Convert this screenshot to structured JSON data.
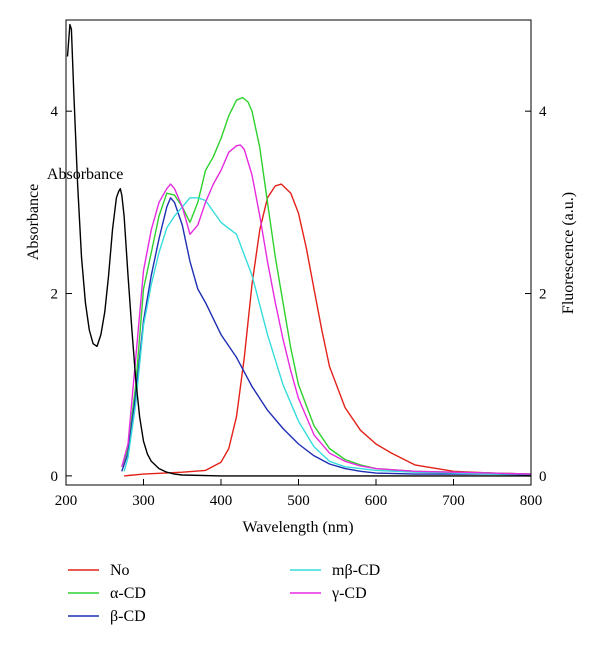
{
  "chart_data": {
    "type": "line",
    "title": "",
    "xlabel": "Wavelength (nm)",
    "ylabel_left": "Absorbance",
    "ylabel_right": "Fluorescence (a.u.)",
    "xlim": [
      200,
      800
    ],
    "ylim_left": [
      -0.1,
      5.0
    ],
    "ylim_right": [
      -0.1,
      5.0
    ],
    "xticks": [
      "200",
      "300",
      "400",
      "500",
      "600",
      "700",
      "800"
    ],
    "yticks_left": [
      "0",
      "2",
      "4"
    ],
    "yticks_right": [
      "0",
      "2",
      "4"
    ],
    "grid": false,
    "legend_position": "bottom",
    "annotation": {
      "text": "Absorbance",
      "x": 227,
      "y": 3.3
    },
    "series": [
      {
        "name": "No",
        "axis": "right",
        "color": "#e32119",
        "x": [
          275,
          300,
          350,
          380,
          400,
          410,
          420,
          430,
          440,
          450,
          460,
          470,
          478,
          490,
          500,
          510,
          520,
          530,
          540,
          560,
          580,
          600,
          620,
          650,
          700,
          750,
          800
        ],
        "y": [
          0.0,
          0.02,
          0.04,
          0.06,
          0.15,
          0.3,
          0.65,
          1.3,
          2.1,
          2.7,
          3.05,
          3.18,
          3.2,
          3.1,
          2.88,
          2.5,
          2.05,
          1.6,
          1.2,
          0.75,
          0.5,
          0.35,
          0.25,
          0.12,
          0.05,
          0.03,
          0.02
        ]
      },
      {
        "name": "α-CD",
        "axis": "right",
        "color": "#2ed12e",
        "x": [
          272,
          280,
          290,
          300,
          310,
          320,
          330,
          340,
          350,
          360,
          370,
          380,
          390,
          400,
          410,
          420,
          428,
          435,
          440,
          450,
          460,
          470,
          480,
          490,
          500,
          520,
          540,
          560,
          580,
          600,
          650,
          700,
          750,
          800
        ],
        "y": [
          0.1,
          0.3,
          1.0,
          2.05,
          2.45,
          2.85,
          3.1,
          3.08,
          2.95,
          2.78,
          3.0,
          3.35,
          3.5,
          3.7,
          3.95,
          4.12,
          4.15,
          4.1,
          4.0,
          3.6,
          3.0,
          2.4,
          1.9,
          1.4,
          1.0,
          0.55,
          0.3,
          0.18,
          0.12,
          0.08,
          0.05,
          0.04,
          0.03,
          0.02
        ]
      },
      {
        "name": "β-CD",
        "axis": "left",
        "color": "#1f2fb4",
        "x": [
          272,
          280,
          290,
          300,
          310,
          320,
          330,
          335,
          340,
          350,
          360,
          370,
          380,
          400,
          420,
          440,
          460,
          480,
          500,
          520,
          540,
          560,
          580,
          600,
          650,
          700,
          750,
          800
        ],
        "y": [
          0.05,
          0.25,
          0.9,
          1.7,
          2.2,
          2.6,
          2.95,
          3.05,
          3.0,
          2.75,
          2.35,
          2.05,
          1.9,
          1.55,
          1.3,
          0.98,
          0.72,
          0.52,
          0.35,
          0.22,
          0.13,
          0.08,
          0.05,
          0.03,
          0.02,
          0.02,
          0.02,
          0.01
        ]
      },
      {
        "name": "mβ-CD",
        "axis": "right",
        "color": "#36dcdc",
        "x": [
          275,
          280,
          290,
          300,
          310,
          320,
          330,
          340,
          350,
          360,
          370,
          380,
          390,
          400,
          420,
          440,
          460,
          480,
          500,
          520,
          540,
          560,
          580,
          600,
          650,
          700,
          750,
          800
        ],
        "y": [
          0.05,
          0.2,
          0.8,
          1.65,
          2.1,
          2.45,
          2.72,
          2.85,
          2.95,
          3.05,
          3.05,
          3.02,
          2.9,
          2.78,
          2.65,
          2.2,
          1.55,
          1.0,
          0.6,
          0.32,
          0.16,
          0.1,
          0.08,
          0.06,
          0.04,
          0.03,
          0.02,
          0.02
        ]
      },
      {
        "name": "γ-CD",
        "axis": "right",
        "color": "#e62ae0",
        "x": [
          272,
          280,
          290,
          300,
          310,
          320,
          330,
          335,
          340,
          350,
          360,
          370,
          380,
          390,
          400,
          410,
          420,
          425,
          430,
          440,
          450,
          460,
          470,
          480,
          490,
          500,
          520,
          540,
          560,
          580,
          600,
          650,
          700,
          750,
          800
        ],
        "y": [
          0.1,
          0.35,
          1.3,
          2.25,
          2.7,
          3.0,
          3.15,
          3.2,
          3.15,
          2.95,
          2.65,
          2.75,
          3.0,
          3.2,
          3.35,
          3.55,
          3.62,
          3.63,
          3.58,
          3.3,
          2.85,
          2.35,
          1.9,
          1.5,
          1.15,
          0.85,
          0.45,
          0.25,
          0.16,
          0.11,
          0.08,
          0.05,
          0.04,
          0.03,
          0.02
        ]
      },
      {
        "name": "",
        "axis": "left",
        "color": "#000000",
        "x": [
          202,
          205,
          207,
          210,
          215,
          220,
          225,
          230,
          235,
          240,
          245,
          250,
          255,
          260,
          265,
          268,
          270,
          272,
          275,
          280,
          285,
          290,
          295,
          300,
          305,
          310,
          320,
          330,
          340,
          350,
          400,
          450,
          500,
          550,
          600,
          650,
          700,
          750,
          800
        ],
        "y": [
          4.6,
          4.95,
          4.9,
          4.2,
          3.2,
          2.4,
          1.9,
          1.6,
          1.45,
          1.42,
          1.55,
          1.8,
          2.2,
          2.7,
          3.05,
          3.12,
          3.15,
          3.08,
          2.85,
          2.2,
          1.6,
          1.05,
          0.65,
          0.38,
          0.24,
          0.16,
          0.08,
          0.04,
          0.02,
          0.01,
          0.0,
          0.0,
          0.0,
          0.0,
          0.0,
          0.0,
          0.0,
          0.0,
          0.0
        ]
      }
    ]
  }
}
